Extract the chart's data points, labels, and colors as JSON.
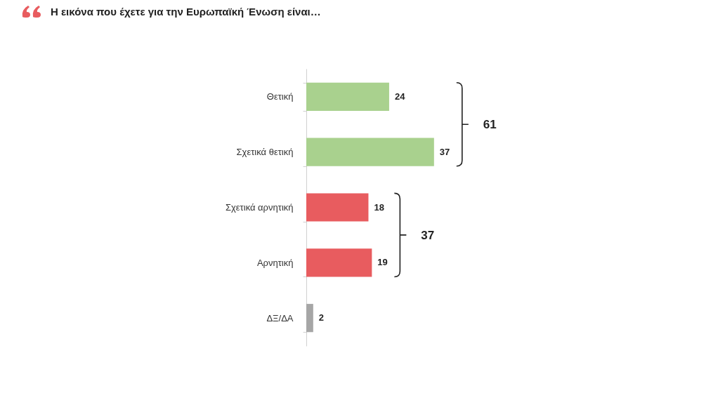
{
  "chart_data": {
    "type": "bar",
    "orientation": "horizontal",
    "title": "Η εικόνα που έχετε για την Ευρωπαϊκή Ένωση είναι…",
    "categories": [
      "Θετική",
      "Σχετικά θετική",
      "Σχετικά αρνητική",
      "Αρνητική",
      "ΔΞ/ΔΑ"
    ],
    "values": [
      24,
      37,
      18,
      19,
      2
    ],
    "colors": [
      "#a9d18e",
      "#a9d18e",
      "#e85c5f",
      "#e85c5f",
      "#a6a6a6"
    ],
    "data_labels": true,
    "annotations": [
      "61",
      "37"
    ]
  }
}
